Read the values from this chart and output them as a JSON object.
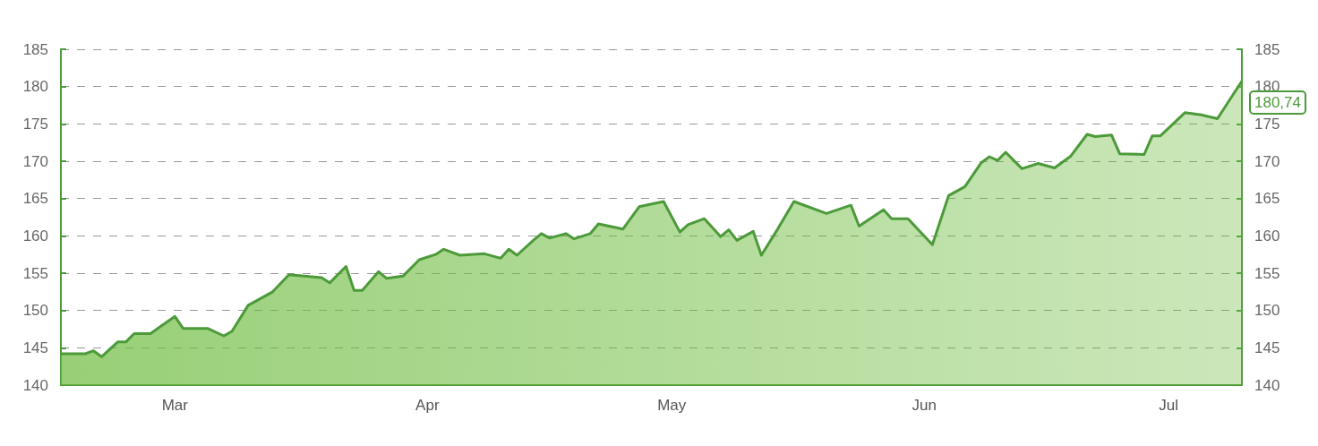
{
  "chart_data": {
    "type": "area",
    "color": "#4c9a3a",
    "x": [
      "--02-15",
      "--02-18",
      "--02-19",
      "--02-20",
      "--02-22",
      "--02-23",
      "--02-24",
      "--02-26",
      "--03-01",
      "--03-02",
      "--03-05",
      "--03-07",
      "--03-08",
      "--03-10",
      "--03-13",
      "--03-15",
      "--03-19",
      "--03-20",
      "--03-22",
      "--03-23",
      "--03-24",
      "--03-26",
      "--03-27",
      "--03-29",
      "--03-31",
      "--04-02",
      "--04-03",
      "--04-05",
      "--04-08",
      "--04-10",
      "--04-11",
      "--04-12",
      "--04-14",
      "--04-15",
      "--04-16",
      "--04-18",
      "--04-19",
      "--04-21",
      "--04-22",
      "--04-25",
      "--04-27",
      "--04-30",
      "--05-02",
      "--05-03",
      "--05-05",
      "--05-07",
      "--05-08",
      "--05-09",
      "--05-11",
      "--05-12",
      "--05-14",
      "--05-16",
      "--05-20",
      "--05-23",
      "--05-24",
      "--05-27",
      "--05-28",
      "--05-30",
      "--06-02",
      "--06-04",
      "--06-06",
      "--06-08",
      "--06-09",
      "--06-10",
      "--06-11",
      "--06-13",
      "--06-15",
      "--06-17",
      "--06-19",
      "--06-21",
      "--06-22",
      "--06-24",
      "--06-25",
      "--06-28",
      "--06-29",
      "--06-30",
      "--07-03",
      "--07-05",
      "--07-07",
      "--07-10"
    ],
    "values": [
      144.2,
      144.2,
      144.6,
      143.8,
      145.8,
      145.8,
      146.9,
      146.9,
      149.2,
      147.6,
      147.6,
      146.6,
      147.2,
      150.7,
      152.5,
      154.8,
      154.4,
      153.7,
      155.9,
      152.7,
      152.7,
      155.2,
      154.3,
      154.6,
      156.8,
      157.5,
      158.2,
      157.4,
      157.6,
      157.0,
      158.2,
      157.4,
      159.4,
      160.3,
      159.7,
      160.3,
      159.6,
      160.3,
      161.6,
      160.9,
      163.9,
      164.6,
      160.5,
      161.5,
      162.3,
      159.9,
      160.8,
      159.4,
      160.6,
      157.4,
      160.9,
      164.6,
      163.0,
      164.1,
      161.3,
      163.5,
      162.3,
      162.3,
      158.8,
      165.4,
      166.6,
      169.8,
      170.6,
      170.1,
      171.2,
      169.0,
      169.7,
      169.1,
      170.7,
      173.6,
      173.3,
      173.5,
      171.0,
      170.9,
      173.4,
      173.4,
      176.5,
      176.2,
      175.7,
      180.74
    ],
    "xlim": [
      "--02-15",
      "--07-10"
    ],
    "xticks": [
      {
        "value": "--03-01",
        "label": "Mar"
      },
      {
        "value": "--04-01",
        "label": "Apr"
      },
      {
        "value": "--05-01",
        "label": "May"
      },
      {
        "value": "--06-01",
        "label": "Jun"
      },
      {
        "value": "--07-01",
        "label": "Jul"
      }
    ],
    "ylim": [
      140,
      185
    ],
    "yticks": [
      140,
      145,
      150,
      155,
      160,
      165,
      170,
      175,
      180,
      185
    ],
    "y2lim": [
      140,
      185
    ],
    "y2ticks": [
      140,
      145,
      150,
      155,
      160,
      165,
      170,
      175,
      180,
      185
    ],
    "grid": "y",
    "line_style": "solid",
    "marker": "none",
    "annotations": [
      {
        "text": "180,74",
        "x": "--07-10",
        "y": 180.74
      }
    ]
  }
}
